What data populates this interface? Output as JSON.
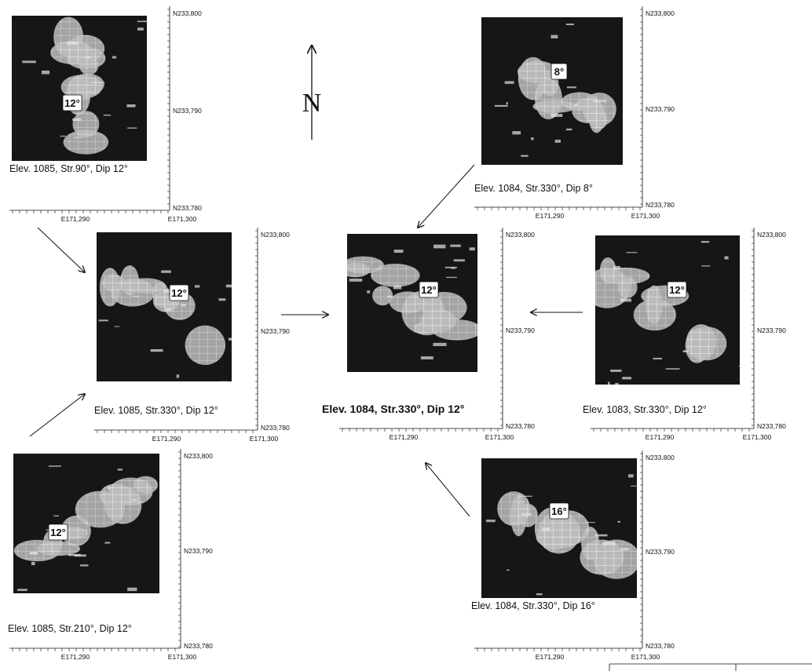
{
  "north_label": "N",
  "panels": [
    {
      "id": "top-left",
      "caption": "Elev. 1085, Str.90°, Dip 12°",
      "dip_label": "12°",
      "elevation": 1085,
      "strike_deg": 90,
      "dip_deg": 12,
      "x_ticks": [
        "E171,290",
        "E171,300"
      ],
      "y_ticks": [
        "N233,800",
        "N233,790",
        "N233,780"
      ]
    },
    {
      "id": "top-right",
      "caption": "Elev. 1084, Str.330°, Dip 8°",
      "dip_label": "8°",
      "elevation": 1084,
      "strike_deg": 330,
      "dip_deg": 8,
      "x_ticks": [
        "E171,290",
        "E171,300"
      ],
      "y_ticks": [
        "N233,800",
        "N233,790",
        "N233,780"
      ]
    },
    {
      "id": "mid-left",
      "caption": "Elev. 1085, Str.330°, Dip 12°",
      "dip_label": "12°",
      "elevation": 1085,
      "strike_deg": 330,
      "dip_deg": 12,
      "x_ticks": [
        "E171,290",
        "E171,300"
      ],
      "y_ticks": [
        "N233,800",
        "N233,790",
        "N233,780"
      ]
    },
    {
      "id": "center",
      "caption": "Elev. 1084, Str.330°, Dip 12°",
      "dip_label": "12°",
      "elevation": 1084,
      "strike_deg": 330,
      "dip_deg": 12,
      "x_ticks": [
        "E171,290",
        "E171,300"
      ],
      "y_ticks": [
        "N233,800",
        "N233,790",
        "N233,780"
      ]
    },
    {
      "id": "mid-right",
      "caption": "Elev. 1083, Str.330°, Dip 12°",
      "dip_label": "12°",
      "elevation": 1083,
      "strike_deg": 330,
      "dip_deg": 12,
      "x_ticks": [
        "E171,290",
        "E171,300"
      ],
      "y_ticks": [
        "N233,800",
        "N233,790",
        "N233,780"
      ]
    },
    {
      "id": "bottom-left",
      "caption": "Elev. 1085, Str.210°, Dip 12°",
      "dip_label": "12°",
      "elevation": 1085,
      "strike_deg": 210,
      "dip_deg": 12,
      "x_ticks": [
        "E171,290",
        "E171,300"
      ],
      "y_ticks": [
        "N233,800",
        "N233,790",
        "N233,780"
      ]
    },
    {
      "id": "bottom-right",
      "caption": "Elev. 1084, Str.330°, Dip 16°",
      "dip_label": "16°",
      "elevation": 1084,
      "strike_deg": 330,
      "dip_deg": 16,
      "x_ticks": [
        "E171,290",
        "E171,300"
      ],
      "y_ticks": [
        "N233,800",
        "N233,790",
        "N233,780"
      ]
    }
  ],
  "colors": {
    "ink": "#111111",
    "light": "#eeeeee",
    "mid": "#8c8c8c"
  }
}
